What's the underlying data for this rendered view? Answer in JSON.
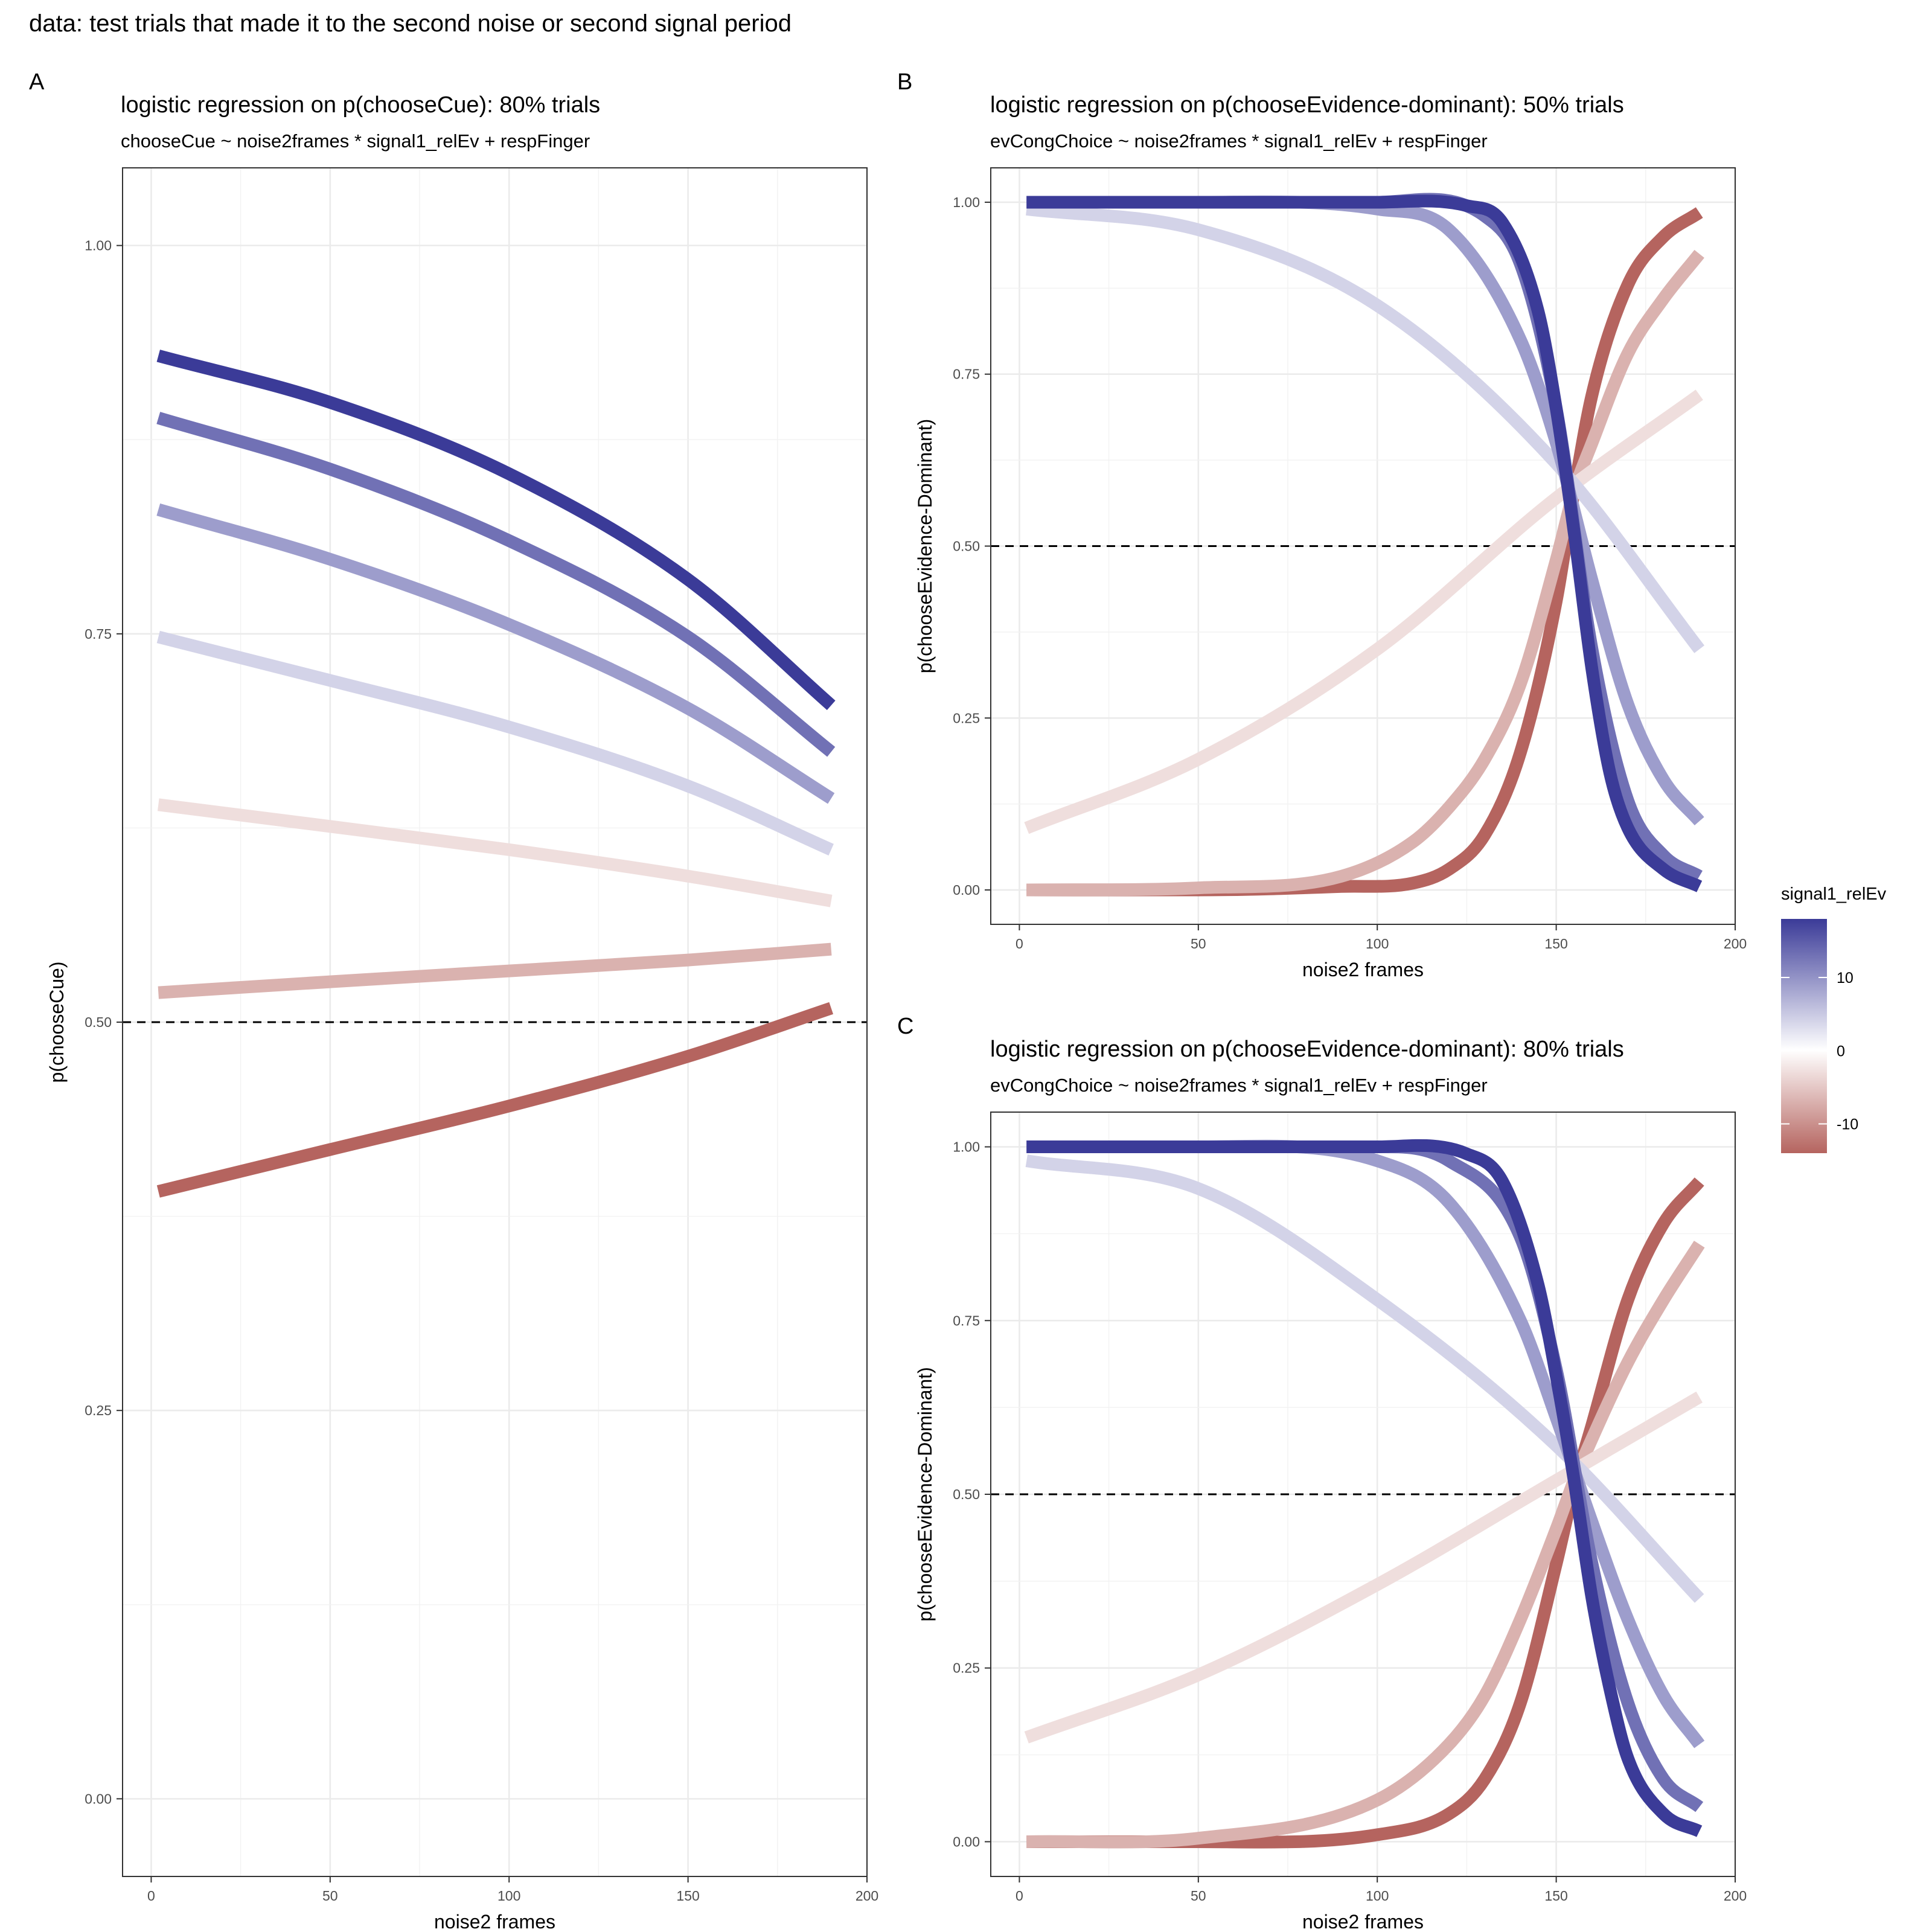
{
  "figure_title": "data: test trials that made it to the second noise or second signal period",
  "legend": {
    "title": "signal1_relEv",
    "breaks": [
      "10",
      "0",
      "-10"
    ],
    "range": [
      -14,
      18
    ],
    "colors": {
      "low": "#b5645f",
      "mid": "#ffffff",
      "high": "#3b3b98"
    }
  },
  "chart_data": [
    {
      "type": "line",
      "tag": "A",
      "title": "logistic regression on p(chooseCue): 80% trials",
      "subtitle": "chooseCue ~ noise2frames * signal1_relEv + respFinger",
      "xlabel": "noise2 frames",
      "ylabel": "p(chooseCue)",
      "xlim": [
        -8,
        200
      ],
      "ylim": [
        -0.05,
        1.05
      ],
      "x_ticks": [
        "0",
        "50",
        "100",
        "150",
        "200"
      ],
      "y_ticks": [
        "0.00",
        "0.25",
        "0.50",
        "0.75",
        "1.00"
      ],
      "grid": true,
      "reference_line": {
        "y": 0.5,
        "style": "dashed"
      },
      "series": [
        {
          "signal1_relEv": -14,
          "x": [
            2,
            50,
            100,
            150,
            190
          ],
          "y": [
            0.391,
            0.418,
            0.446,
            0.478,
            0.509
          ]
        },
        {
          "signal1_relEv": -7,
          "x": [
            2,
            50,
            100,
            150,
            190
          ],
          "y": [
            0.519,
            0.526,
            0.533,
            0.54,
            0.547
          ]
        },
        {
          "signal1_relEv": -3,
          "x": [
            2,
            50,
            100,
            150,
            190
          ],
          "y": [
            0.64,
            0.626,
            0.611,
            0.594,
            0.578
          ]
        },
        {
          "signal1_relEv": 4,
          "x": [
            2,
            50,
            100,
            150,
            190
          ],
          "y": [
            0.748,
            0.72,
            0.69,
            0.652,
            0.611
          ]
        },
        {
          "signal1_relEv": 9,
          "x": [
            2,
            50,
            100,
            150,
            190
          ],
          "y": [
            0.83,
            0.798,
            0.756,
            0.702,
            0.644
          ]
        },
        {
          "signal1_relEv": 13,
          "x": [
            2,
            50,
            100,
            150,
            190
          ],
          "y": [
            0.889,
            0.856,
            0.81,
            0.748,
            0.674
          ]
        },
        {
          "signal1_relEv": 18,
          "x": [
            2,
            50,
            100,
            150,
            190
          ],
          "y": [
            0.929,
            0.899,
            0.853,
            0.785,
            0.704
          ]
        }
      ]
    },
    {
      "type": "line",
      "tag": "B",
      "title": "logistic regression on p(chooseEvidence-dominant): 50% trials",
      "subtitle": "evCongChoice ~ noise2frames * signal1_relEv + respFinger",
      "xlabel": "noise2 frames",
      "ylabel": "p(chooseEvidence-Dominant)",
      "xlim": [
        -8,
        200
      ],
      "ylim": [
        -0.05,
        1.05
      ],
      "x_ticks": [
        "0",
        "50",
        "100",
        "150",
        "200"
      ],
      "y_ticks": [
        "0.00",
        "0.25",
        "0.50",
        "0.75",
        "1.00"
      ],
      "grid": true,
      "reference_line": {
        "y": 0.5,
        "style": "dashed"
      },
      "series": [
        {
          "signal1_relEv": -14,
          "x": [
            2,
            50,
            90,
            110,
            120,
            130,
            140,
            150,
            155,
            160,
            170,
            180,
            190
          ],
          "y": [
            0.0,
            0.0,
            0.005,
            0.01,
            0.03,
            0.08,
            0.2,
            0.42,
            0.58,
            0.72,
            0.88,
            0.95,
            0.985
          ]
        },
        {
          "signal1_relEv": -7,
          "x": [
            2,
            50,
            90,
            110,
            120,
            130,
            140,
            150,
            155,
            160,
            170,
            180,
            190
          ],
          "y": [
            0.0,
            0.003,
            0.02,
            0.07,
            0.12,
            0.19,
            0.3,
            0.48,
            0.58,
            0.65,
            0.78,
            0.86,
            0.925
          ]
        },
        {
          "signal1_relEv": -3,
          "x": [
            2,
            50,
            100,
            150,
            190
          ],
          "y": [
            0.09,
            0.19,
            0.35,
            0.57,
            0.72
          ]
        },
        {
          "signal1_relEv": 4,
          "x": [
            2,
            50,
            100,
            150,
            190
          ],
          "y": [
            0.99,
            0.96,
            0.85,
            0.62,
            0.35
          ]
        },
        {
          "signal1_relEv": 9,
          "x": [
            2,
            50,
            100,
            120,
            140,
            150,
            160,
            170,
            180,
            190
          ],
          "y": [
            1.0,
            1.0,
            0.99,
            0.96,
            0.8,
            0.65,
            0.45,
            0.27,
            0.16,
            0.1
          ]
        },
        {
          "signal1_relEv": 13,
          "x": [
            2,
            50,
            100,
            130,
            140,
            150,
            160,
            170,
            180,
            190
          ],
          "y": [
            1.0,
            1.0,
            1.0,
            0.98,
            0.91,
            0.7,
            0.35,
            0.13,
            0.05,
            0.02
          ]
        },
        {
          "signal1_relEv": 18,
          "x": [
            2,
            50,
            100,
            125,
            135,
            145,
            150,
            155,
            160,
            165,
            170,
            180,
            190
          ],
          "y": [
            1.0,
            1.0,
            1.0,
            0.995,
            0.97,
            0.84,
            0.7,
            0.52,
            0.32,
            0.17,
            0.09,
            0.03,
            0.005
          ]
        }
      ]
    },
    {
      "type": "line",
      "tag": "C",
      "title": "logistic regression on p(chooseEvidence-dominant): 80% trials",
      "subtitle": "evCongChoice ~ noise2frames * signal1_relEv + respFinger",
      "xlabel": "noise2 frames",
      "ylabel": "p(chooseEvidence-Dominant)",
      "xlim": [
        -8,
        200
      ],
      "ylim": [
        -0.05,
        1.05
      ],
      "x_ticks": [
        "0",
        "50",
        "100",
        "150",
        "200"
      ],
      "y_ticks": [
        "0.00",
        "0.25",
        "0.50",
        "0.75",
        "1.00"
      ],
      "grid": true,
      "reference_line": {
        "y": 0.5,
        "style": "dashed"
      },
      "series": [
        {
          "signal1_relEv": -14,
          "x": [
            2,
            50,
            100,
            120,
            130,
            140,
            150,
            155,
            160,
            170,
            180,
            190
          ],
          "y": [
            0.0,
            0.0,
            0.01,
            0.04,
            0.09,
            0.2,
            0.4,
            0.51,
            0.6,
            0.78,
            0.89,
            0.95
          ]
        },
        {
          "signal1_relEv": -7,
          "x": [
            2,
            50,
            100,
            120,
            130,
            140,
            150,
            155,
            160,
            170,
            180,
            190
          ],
          "y": [
            0.0,
            0.005,
            0.06,
            0.14,
            0.21,
            0.32,
            0.45,
            0.52,
            0.58,
            0.69,
            0.78,
            0.86
          ]
        },
        {
          "signal1_relEv": -3,
          "x": [
            2,
            50,
            100,
            150,
            190
          ],
          "y": [
            0.15,
            0.24,
            0.37,
            0.52,
            0.64
          ]
        },
        {
          "signal1_relEv": 4,
          "x": [
            2,
            50,
            100,
            150,
            190
          ],
          "y": [
            0.98,
            0.94,
            0.78,
            0.57,
            0.35
          ]
        },
        {
          "signal1_relEv": 9,
          "x": [
            2,
            50,
            100,
            120,
            140,
            150,
            160,
            170,
            180,
            190
          ],
          "y": [
            1.0,
            1.0,
            0.98,
            0.92,
            0.75,
            0.61,
            0.46,
            0.32,
            0.21,
            0.14
          ]
        },
        {
          "signal1_relEv": 13,
          "x": [
            2,
            50,
            100,
            120,
            140,
            150,
            160,
            170,
            180,
            190
          ],
          "y": [
            1.0,
            1.0,
            1.0,
            0.98,
            0.87,
            0.68,
            0.4,
            0.2,
            0.09,
            0.05
          ]
        },
        {
          "signal1_relEv": 18,
          "x": [
            2,
            50,
            100,
            125,
            135,
            145,
            150,
            155,
            160,
            165,
            170,
            180,
            190
          ],
          "y": [
            1.0,
            1.0,
            1.0,
            0.99,
            0.95,
            0.8,
            0.67,
            0.52,
            0.35,
            0.22,
            0.12,
            0.04,
            0.015
          ]
        }
      ]
    }
  ]
}
